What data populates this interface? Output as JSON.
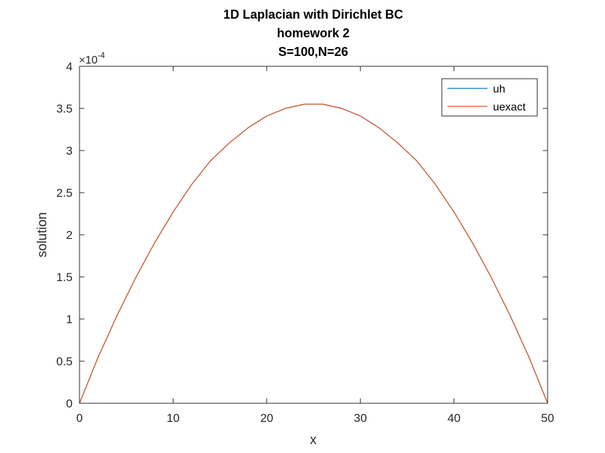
{
  "chart_data": {
    "type": "line",
    "title_lines": [
      "1D Laplacian with Dirichlet BC",
      "homework 2",
      "S=100,N=26"
    ],
    "xlabel": "x",
    "ylabel": "solution",
    "xlim": [
      0,
      50
    ],
    "ylim": [
      0,
      4
    ],
    "y_exponent_base": "×10",
    "y_exponent_power": "-4",
    "x_ticks": [
      0,
      10,
      20,
      30,
      40,
      50
    ],
    "y_ticks": [
      0,
      0.5,
      1,
      1.5,
      2,
      2.5,
      3,
      3.5,
      4
    ],
    "x_tick_labels": [
      "0",
      "10",
      "20",
      "30",
      "40",
      "50"
    ],
    "y_tick_labels": [
      "0",
      "0.5",
      "1",
      "1.5",
      "2",
      "2.5",
      "3",
      "3.5",
      "4"
    ],
    "grid": false,
    "legend_position": "top-right",
    "x": [
      0,
      2,
      4,
      6,
      8,
      10,
      12,
      14,
      16,
      18,
      20,
      22,
      24,
      26,
      28,
      30,
      32,
      34,
      36,
      38,
      40,
      42,
      44,
      46,
      48,
      50
    ],
    "series": [
      {
        "name": "uh",
        "color": "#0072BD",
        "values": [
          0,
          0.55,
          1.04,
          1.49,
          1.9,
          2.27,
          2.6,
          2.88,
          3.09,
          3.27,
          3.41,
          3.5,
          3.55,
          3.55,
          3.5,
          3.41,
          3.27,
          3.09,
          2.88,
          2.6,
          2.27,
          1.9,
          1.49,
          1.04,
          0.55,
          0
        ]
      },
      {
        "name": "uexact",
        "color": "#D95319",
        "values": [
          0,
          0.55,
          1.04,
          1.49,
          1.9,
          2.27,
          2.6,
          2.88,
          3.09,
          3.27,
          3.41,
          3.5,
          3.55,
          3.55,
          3.5,
          3.41,
          3.27,
          3.09,
          2.88,
          2.6,
          2.27,
          1.9,
          1.49,
          1.04,
          0.55,
          0
        ]
      }
    ]
  }
}
